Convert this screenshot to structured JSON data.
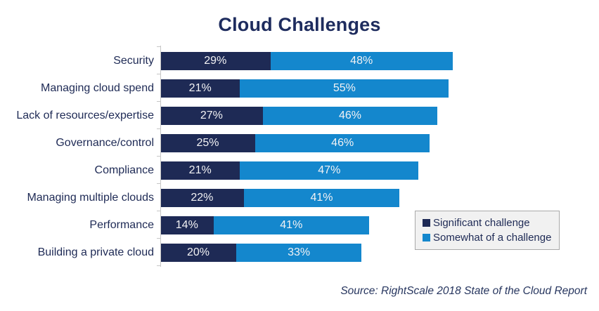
{
  "title": "Cloud Challenges",
  "source": "Source: RightScale 2018 State of the Cloud Report",
  "legend": {
    "items": [
      {
        "label": "Significant challenge",
        "color": "#1e2a55"
      },
      {
        "label": "Somewhat of a challenge",
        "color": "#1487cd"
      }
    ]
  },
  "colors": {
    "significant": "#1e2a55",
    "somewhat": "#1487cd",
    "title_text": "#1e2c5e",
    "label_text": "#1e2a55",
    "value_text": "#ffffff",
    "axis_line": "#c6c6c6",
    "legend_bg": "#f1f1f1",
    "legend_border": "#a9a9a9"
  },
  "chart_data": {
    "type": "bar",
    "orientation": "horizontal",
    "stacked": true,
    "title": "Cloud Challenges",
    "categories": [
      "Security",
      "Managing cloud spend",
      "Lack of resources/expertise",
      "Governance/control",
      "Compliance",
      "Managing multiple clouds",
      "Performance",
      "Building a private cloud"
    ],
    "series": [
      {
        "name": "Significant challenge",
        "color": "#1e2a55",
        "values": [
          29,
          21,
          27,
          25,
          21,
          22,
          14,
          20
        ]
      },
      {
        "name": "Somewhat of a challenge",
        "color": "#1487cd",
        "values": [
          48,
          55,
          46,
          46,
          47,
          41,
          41,
          33
        ]
      }
    ],
    "value_suffix": "%",
    "value_labels": "inside-center",
    "xlim": [
      0,
      100
    ],
    "grid": false,
    "legend_position": "inside-bottom-right"
  }
}
